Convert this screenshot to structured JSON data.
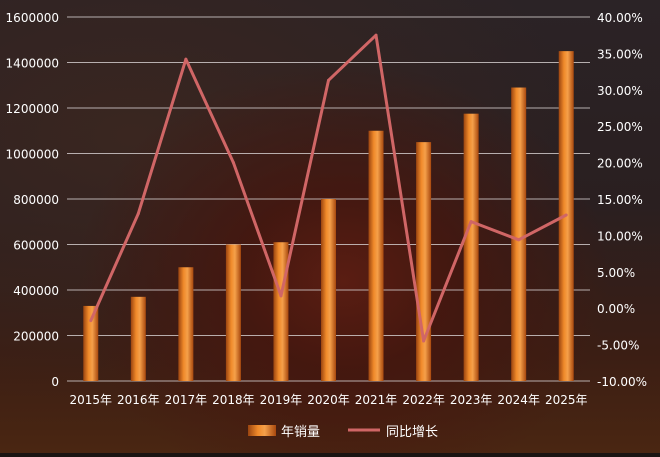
{
  "chart_data": {
    "type": "bar",
    "categories": [
      "2015年",
      "2016年",
      "2017年",
      "2018年",
      "2019年",
      "2020年",
      "2021年",
      "2022年",
      "2023年",
      "2024年",
      "2025年"
    ],
    "series": [
      {
        "name": "年销量",
        "type": "bar",
        "axis": "left",
        "values": [
          330000,
          370000,
          500000,
          600000,
          610000,
          800000,
          1100000,
          1050000,
          1175000,
          1290000,
          1450000
        ]
      },
      {
        "name": "同比增长",
        "type": "line",
        "axis": "right",
        "values": [
          -1.7,
          13.0,
          34.2,
          20.0,
          1.7,
          31.3,
          37.5,
          -4.5,
          11.9,
          9.4,
          12.8
        ]
      }
    ],
    "y_left": {
      "range": [
        0,
        1600000
      ],
      "ticks": [
        "0",
        "200000",
        "400000",
        "600000",
        "800000",
        "1000000",
        "1200000",
        "1400000",
        "1600000"
      ]
    },
    "y_right": {
      "range": [
        -10,
        40
      ],
      "ticks": [
        "-10.00%",
        "-5.00%",
        "0.00%",
        "5.00%",
        "10.00%",
        "15.00%",
        "20.00%",
        "25.00%",
        "30.00%",
        "35.00%",
        "40.00%"
      ]
    },
    "grid": true,
    "legend": "bottom-center",
    "colors": {
      "bar": "#e8781e",
      "bar_dark": "#8a3a0c",
      "line": "#d06666",
      "text": "#ffffff",
      "grid": "#cfc8c8"
    }
  }
}
